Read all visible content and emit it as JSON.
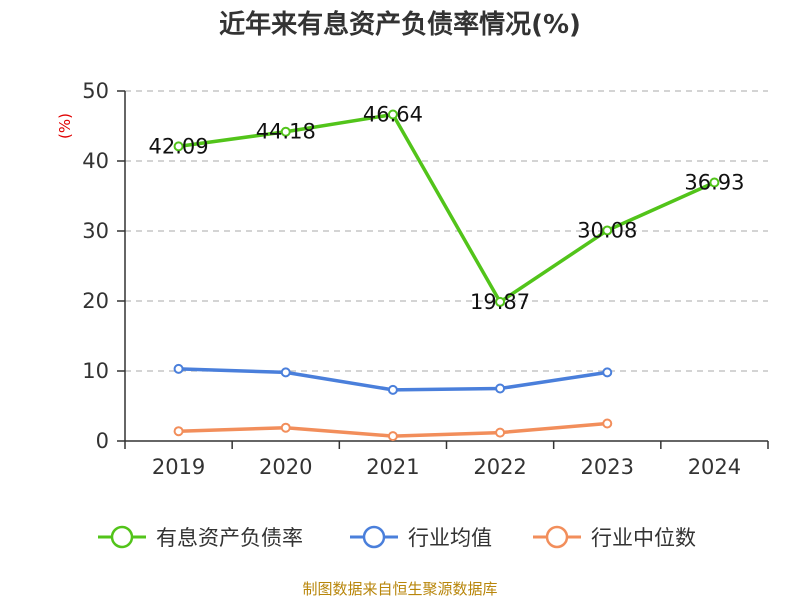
{
  "chart_data": {
    "type": "line",
    "title": "近年来有息资产负债率情况(%)",
    "ylabel": "(%)",
    "ylim": [
      0,
      50
    ],
    "yticks": [
      0,
      10,
      20,
      30,
      40,
      50
    ],
    "categories": [
      "2019",
      "2020",
      "2021",
      "2022",
      "2023",
      "2024"
    ],
    "grid": true,
    "legend_position": "bottom",
    "series": [
      {
        "name": "有息资产负债率",
        "color": "#52c41a",
        "values": [
          42.09,
          44.18,
          46.64,
          19.87,
          30.08,
          36.93
        ],
        "show_labels": true
      },
      {
        "name": "行业均值",
        "color": "#4a7fdb",
        "values": [
          10.3,
          9.8,
          7.3,
          7.5,
          9.8,
          null
        ],
        "show_labels": false
      },
      {
        "name": "行业中位数",
        "color": "#f28e5b",
        "values": [
          1.4,
          1.9,
          0.7,
          1.2,
          2.5,
          null
        ],
        "show_labels": false
      }
    ],
    "source": "制图数据来自恒生聚源数据库"
  }
}
